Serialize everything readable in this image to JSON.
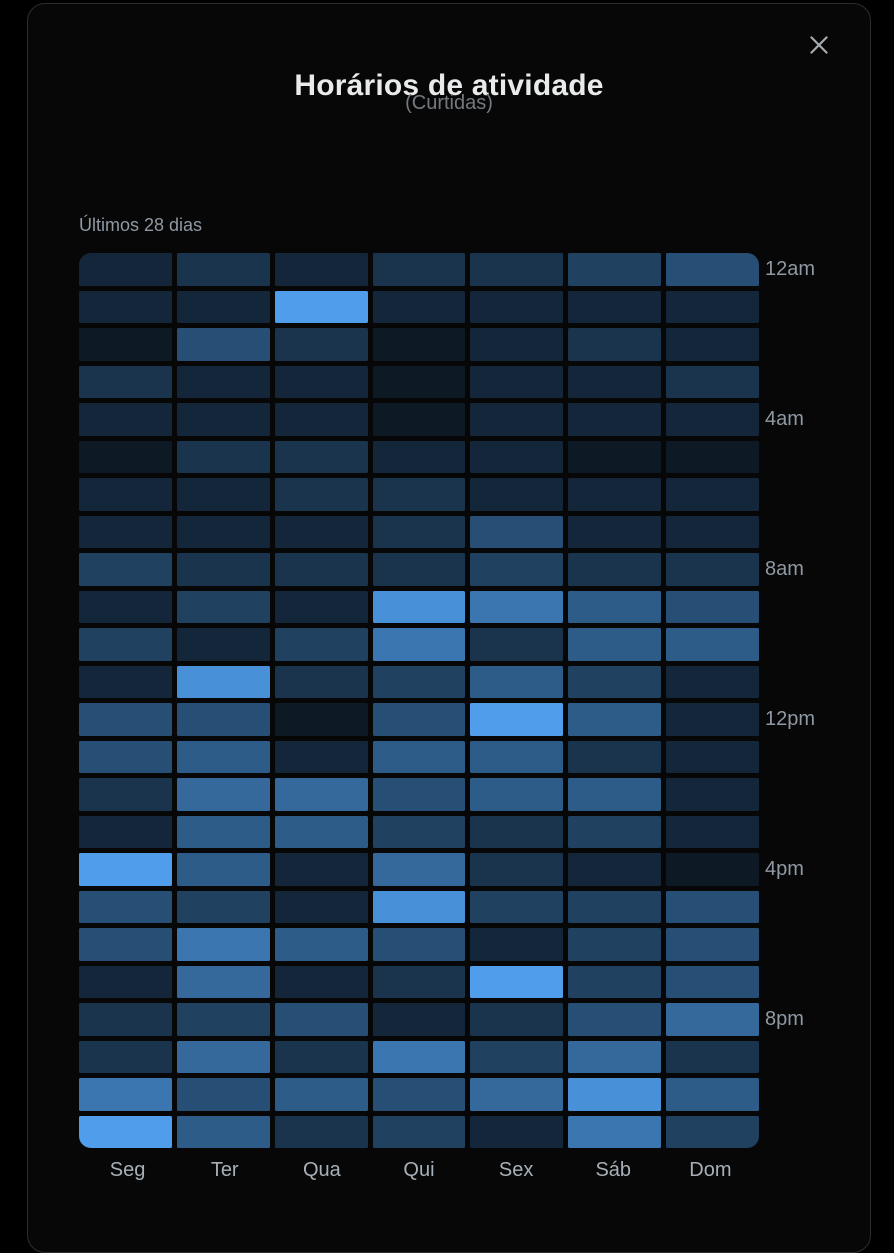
{
  "header": {
    "title": "Horários de atividade",
    "subtitle": "(Curtidas)"
  },
  "chart_data": {
    "type": "heatmap",
    "title": "Horários de atividade",
    "subtitle": "(Curtidas)",
    "period": "Últimos 28 dias",
    "columns": [
      "Seg",
      "Ter",
      "Qua",
      "Qui",
      "Sex",
      "Sáb",
      "Dom"
    ],
    "hour_labels": [
      "12am",
      "",
      "",
      "",
      "4am",
      "",
      "",
      "",
      "8am",
      "",
      "",
      "",
      "12pm",
      "",
      "",
      "",
      "4pm",
      "",
      "",
      "",
      "8pm",
      "",
      "",
      ""
    ],
    "value_scale": "relative activity intensity 0-10",
    "values": [
      [
        1,
        2,
        1,
        2,
        2,
        3,
        4
      ],
      [
        1,
        1,
        10,
        1,
        1,
        1,
        1
      ],
      [
        0,
        4,
        2,
        0,
        1,
        2,
        1
      ],
      [
        2,
        1,
        1,
        0,
        1,
        1,
        2
      ],
      [
        1,
        1,
        1,
        0,
        1,
        1,
        1
      ],
      [
        0,
        2,
        2,
        1,
        1,
        0,
        0
      ],
      [
        1,
        1,
        2,
        2,
        1,
        1,
        1
      ],
      [
        1,
        1,
        1,
        2,
        4,
        1,
        1
      ],
      [
        3,
        2,
        2,
        2,
        3,
        2,
        2
      ],
      [
        1,
        3,
        1,
        9,
        7,
        5,
        4
      ],
      [
        3,
        1,
        3,
        7,
        2,
        5,
        5
      ],
      [
        1,
        9,
        2,
        3,
        5,
        3,
        1
      ],
      [
        4,
        4,
        0,
        4,
        10,
        5,
        1
      ],
      [
        4,
        5,
        1,
        5,
        5,
        2,
        1
      ],
      [
        2,
        6,
        6,
        4,
        5,
        5,
        1
      ],
      [
        1,
        5,
        5,
        3,
        2,
        3,
        1
      ],
      [
        10,
        5,
        1,
        6,
        2,
        1,
        0
      ],
      [
        4,
        3,
        1,
        9,
        3,
        3,
        4
      ],
      [
        4,
        7,
        5,
        4,
        1,
        3,
        4
      ],
      [
        1,
        6,
        1,
        2,
        10,
        3,
        4
      ],
      [
        2,
        3,
        4,
        1,
        2,
        4,
        6
      ],
      [
        2,
        6,
        2,
        7,
        3,
        6,
        2
      ],
      [
        7,
        4,
        5,
        4,
        6,
        9,
        5
      ],
      [
        10,
        5,
        2,
        3,
        1,
        7,
        3
      ]
    ],
    "colors": {
      "min": "#0d1a26",
      "max": "#4f9deb"
    },
    "legend_position": "none",
    "grid": "off"
  }
}
